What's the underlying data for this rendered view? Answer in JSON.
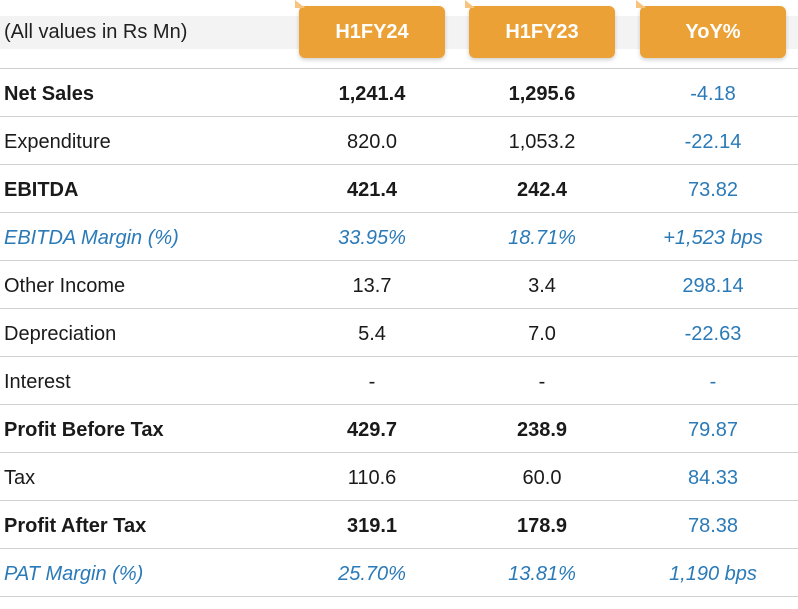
{
  "header": {
    "caption": "(All values in Rs Mn)",
    "columns": [
      "H1FY24",
      "H1FY23",
      "YoY%"
    ]
  },
  "colors": {
    "accent": "#eba135",
    "value_blue": "#2a7ab8",
    "text": "#1a1a1a",
    "rule": "#d0d0d0"
  },
  "rows": [
    {
      "label": "Net Sales",
      "h1fy24": "1,241.4",
      "h1fy23": "1,295.6",
      "yoy": "-4.18"
    },
    {
      "label": "Expenditure",
      "h1fy24": "820.0",
      "h1fy23": "1,053.2",
      "yoy": "-22.14"
    },
    {
      "label": "EBITDA",
      "h1fy24": "421.4",
      "h1fy23": "242.4",
      "yoy": "73.82"
    },
    {
      "label": "EBITDA Margin (%)",
      "h1fy24": "33.95%",
      "h1fy23": "18.71%",
      "yoy": "+1,523 bps"
    },
    {
      "label": "Other Income",
      "h1fy24": "13.7",
      "h1fy23": "3.4",
      "yoy": "298.14"
    },
    {
      "label": "Depreciation",
      "h1fy24": "5.4",
      "h1fy23": "7.0",
      "yoy": "-22.63"
    },
    {
      "label": "Interest",
      "h1fy24": "-",
      "h1fy23": "-",
      "yoy": "-"
    },
    {
      "label": "Profit Before Tax",
      "h1fy24": "429.7",
      "h1fy23": "238.9",
      "yoy": "79.87"
    },
    {
      "label": "Tax",
      "h1fy24": "110.6",
      "h1fy23": "60.0",
      "yoy": "84.33"
    },
    {
      "label": "Profit After Tax",
      "h1fy24": "319.1",
      "h1fy23": "178.9",
      "yoy": "78.38"
    },
    {
      "label": "PAT Margin (%)",
      "h1fy24": "25.70%",
      "h1fy23": "13.81%",
      "yoy": "1,190 bps"
    }
  ]
}
